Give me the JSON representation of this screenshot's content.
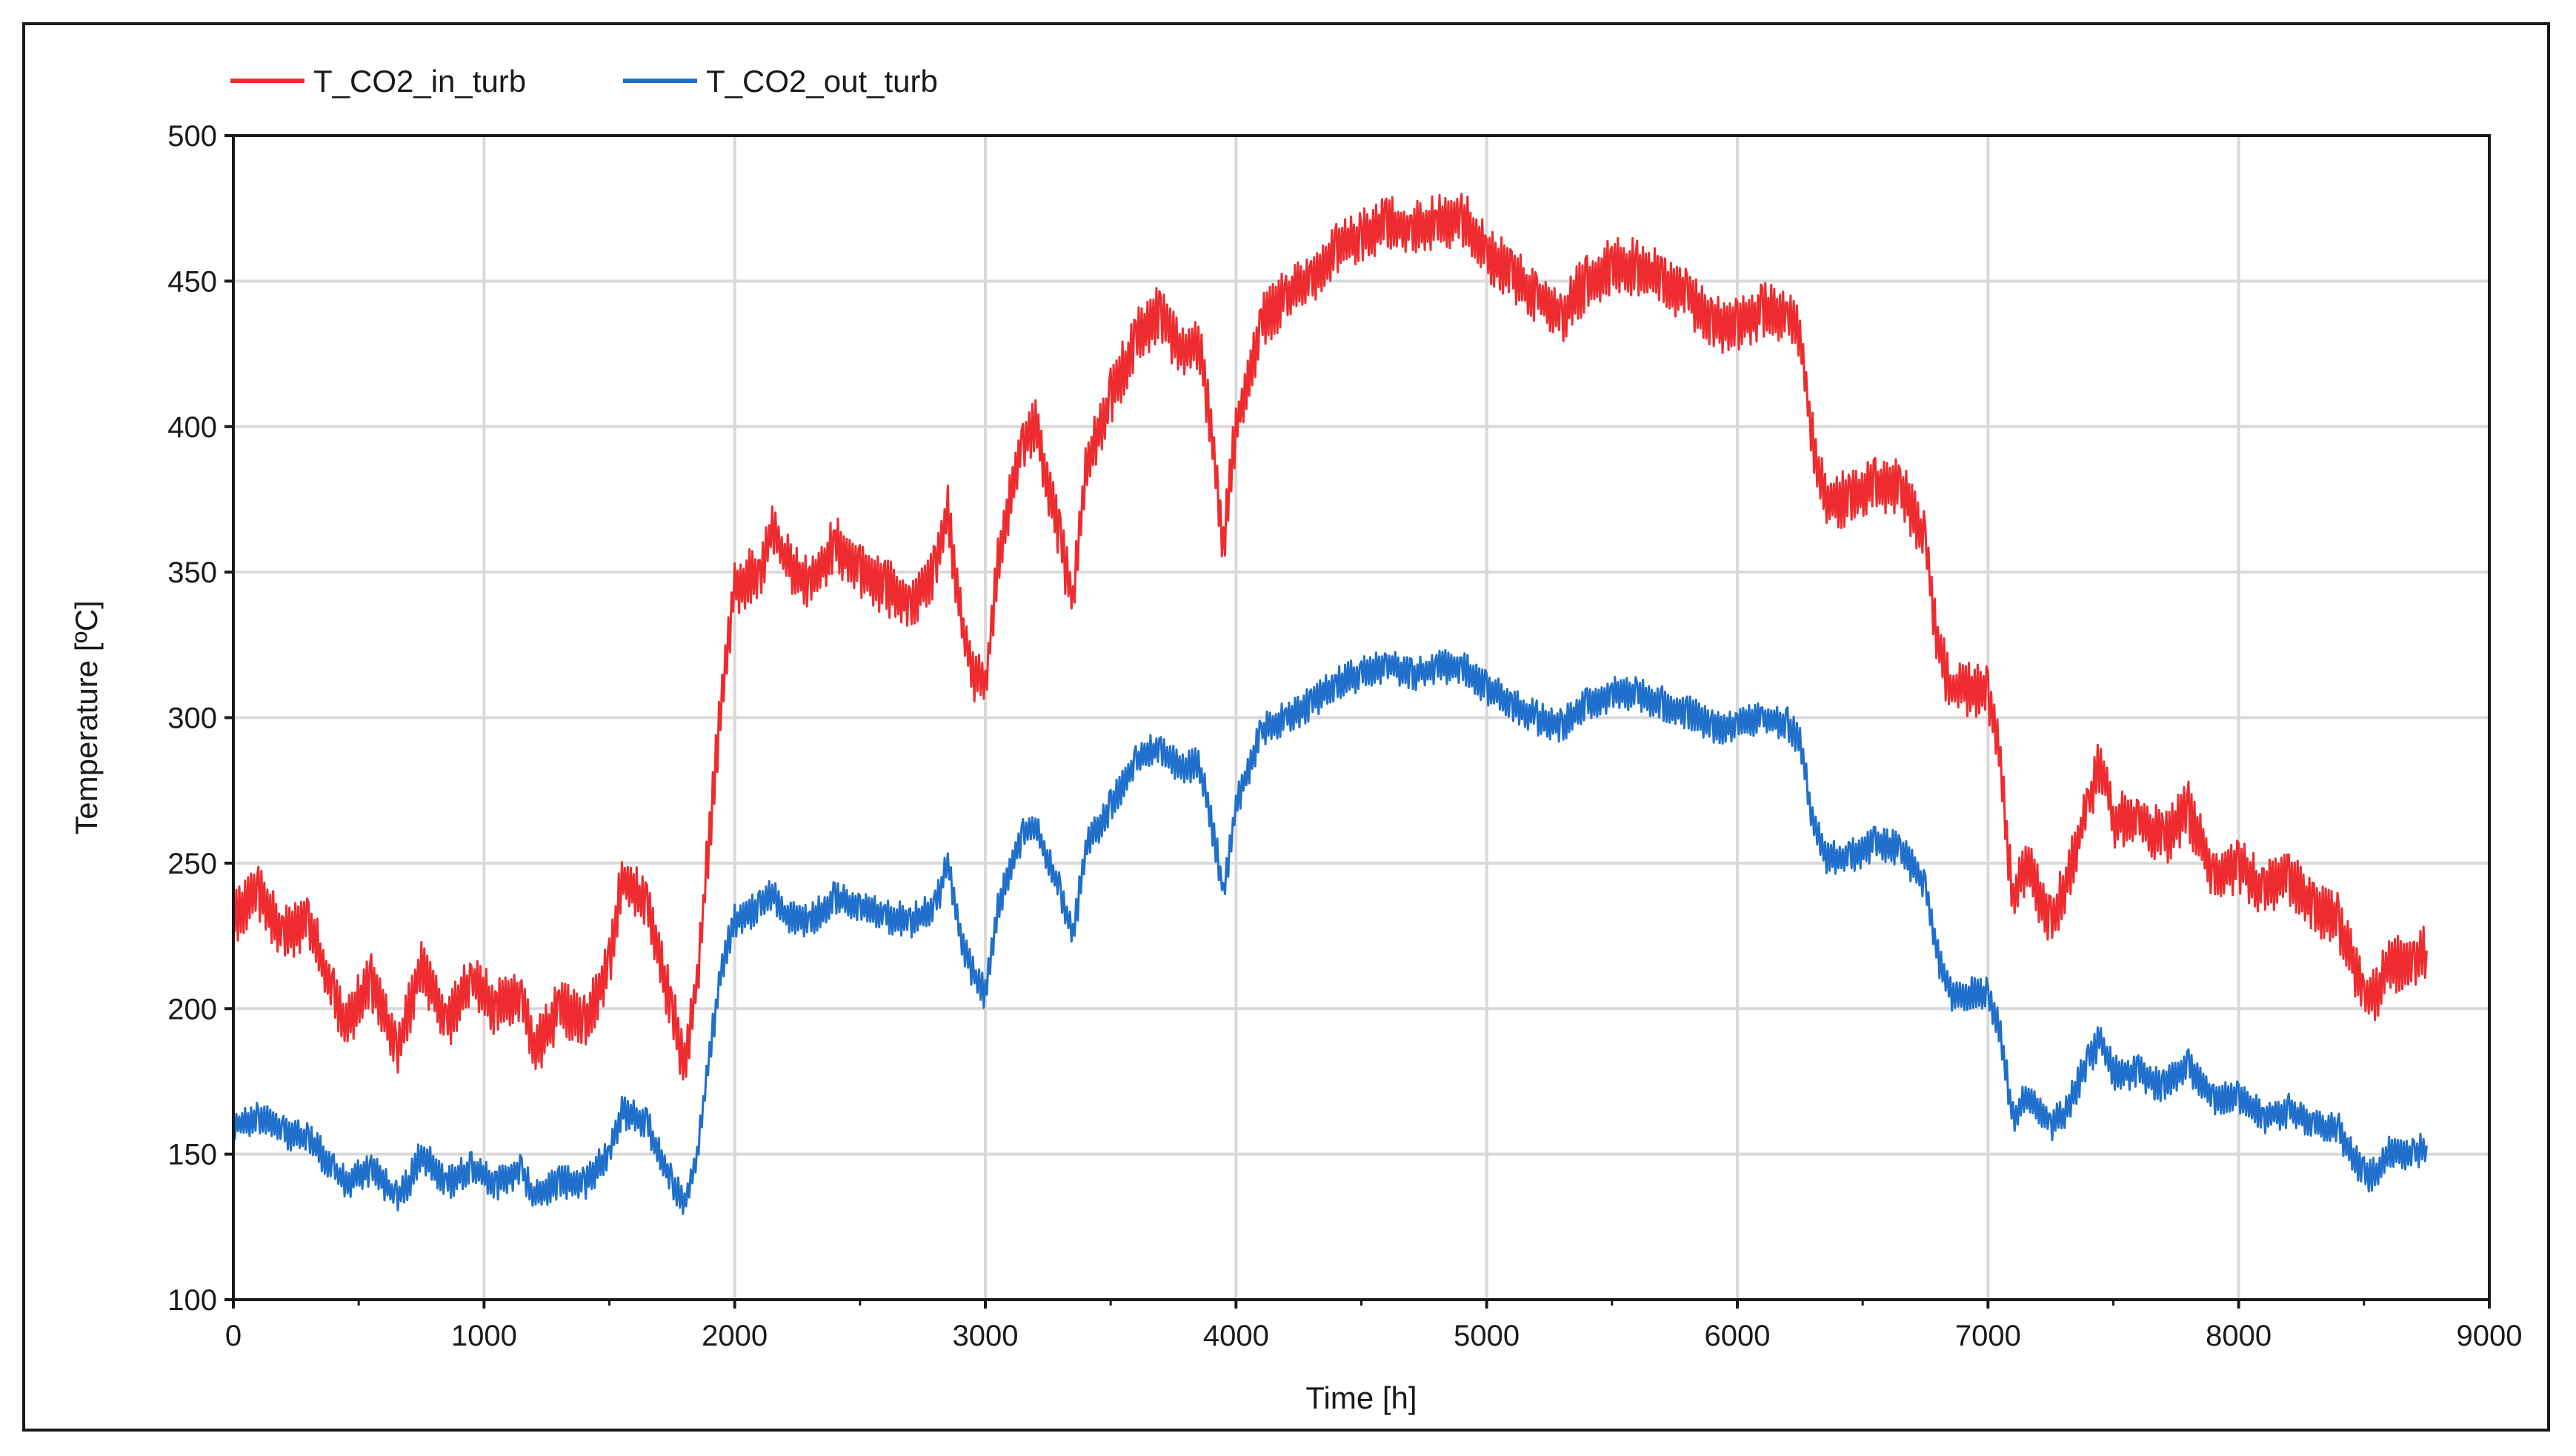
{
  "chart_data": {
    "type": "line",
    "title": "",
    "xlabel": "Time [h]",
    "ylabel": "Temperature [ºC]",
    "xlim": [
      0,
      9000
    ],
    "ylim": [
      100,
      500
    ],
    "x_ticks": [
      0,
      1000,
      2000,
      3000,
      4000,
      5000,
      6000,
      7000,
      8000,
      9000
    ],
    "y_ticks": [
      100,
      150,
      200,
      250,
      300,
      350,
      400,
      450,
      500
    ],
    "x_tick_labels": [
      "0",
      "1000",
      "2000",
      "3000",
      "4000",
      "5000",
      "6000",
      "7000",
      "8000",
      "9000"
    ],
    "y_tick_labels": [
      "100",
      "150",
      "200",
      "250",
      "300",
      "350",
      "400",
      "450",
      "500"
    ],
    "grid": true,
    "legend_position": "top-left",
    "series": [
      {
        "name": "T_CO2_in_turb",
        "color": "#ee2b2e",
        "x": [
          0,
          100,
          200,
          300,
          400,
          450,
          550,
          650,
          700,
          750,
          850,
          950,
          1050,
          1150,
          1200,
          1300,
          1400,
          1500,
          1550,
          1650,
          1750,
          1800,
          1850,
          1900,
          1950,
          2000,
          2100,
          2150,
          2200,
          2300,
          2400,
          2500,
          2600,
          2700,
          2800,
          2850,
          2900,
          2950,
          3000,
          3050,
          3150,
          3200,
          3300,
          3350,
          3400,
          3500,
          3600,
          3700,
          3750,
          3800,
          3850,
          3900,
          3950,
          4000,
          4100,
          4200,
          4300,
          4400,
          4500,
          4600,
          4700,
          4800,
          4900,
          5000,
          5100,
          5200,
          5300,
          5400,
          5500,
          5600,
          5700,
          5800,
          5900,
          6000,
          6100,
          6200,
          6250,
          6300,
          6350,
          6450,
          6550,
          6650,
          6750,
          6800,
          6850,
          6900,
          7000,
          7050,
          7100,
          7150,
          7250,
          7300,
          7400,
          7450,
          7500,
          7600,
          7700,
          7800,
          7900,
          8000,
          8100,
          8200,
          8300,
          8400,
          8500,
          8550,
          8600,
          8700,
          8750
        ],
        "values": [
          232,
          240,
          225,
          230,
          205,
          195,
          210,
          185,
          200,
          215,
          195,
          210,
          200,
          205,
          185,
          200,
          195,
          215,
          245,
          235,
          200,
          180,
          210,
          260,
          310,
          345,
          350,
          365,
          355,
          345,
          360,
          350,
          345,
          340,
          350,
          370,
          335,
          315,
          310,
          355,
          395,
          400,
          360,
          340,
          385,
          410,
          430,
          440,
          430,
          425,
          430,
          400,
          360,
          400,
          435,
          445,
          450,
          460,
          465,
          470,
          468,
          470,
          472,
          460,
          452,
          445,
          438,
          450,
          455,
          455,
          450,
          445,
          435,
          435,
          440,
          438,
          430,
          395,
          375,
          375,
          380,
          380,
          360,
          325,
          310,
          310,
          310,
          285,
          235,
          250,
          230,
          240,
          270,
          285,
          265,
          265,
          258,
          268,
          245,
          250,
          240,
          245,
          235,
          230,
          205,
          205,
          215,
          215,
          220
        ]
      },
      {
        "name": "T_CO2_out_turb",
        "color": "#1f6fcb",
        "x": [
          0,
          100,
          200,
          300,
          400,
          450,
          550,
          650,
          700,
          750,
          850,
          950,
          1050,
          1150,
          1200,
          1300,
          1400,
          1500,
          1550,
          1650,
          1750,
          1800,
          1850,
          1900,
          1950,
          2000,
          2100,
          2150,
          2200,
          2300,
          2400,
          2500,
          2600,
          2700,
          2800,
          2850,
          2900,
          2950,
          3000,
          3050,
          3150,
          3200,
          3300,
          3350,
          3400,
          3500,
          3600,
          3700,
          3750,
          3800,
          3850,
          3900,
          3950,
          4000,
          4100,
          4200,
          4300,
          4400,
          4500,
          4600,
          4700,
          4800,
          4900,
          5000,
          5100,
          5200,
          5300,
          5400,
          5500,
          5600,
          5700,
          5800,
          5900,
          6000,
          6100,
          6200,
          6250,
          6300,
          6350,
          6450,
          6550,
          6650,
          6750,
          6800,
          6850,
          6900,
          7000,
          7050,
          7100,
          7150,
          7250,
          7300,
          7400,
          7450,
          7500,
          7600,
          7700,
          7800,
          7900,
          8000,
          8100,
          8200,
          8300,
          8400,
          8500,
          8550,
          8600,
          8700,
          8750
        ],
        "values": [
          160,
          162,
          158,
          155,
          145,
          140,
          145,
          135,
          140,
          150,
          140,
          145,
          140,
          145,
          135,
          140,
          140,
          150,
          165,
          160,
          140,
          133,
          150,
          185,
          215,
          230,
          235,
          240,
          232,
          230,
          238,
          235,
          232,
          230,
          235,
          250,
          225,
          212,
          205,
          235,
          260,
          262,
          240,
          225,
          255,
          270,
          285,
          290,
          285,
          283,
          285,
          265,
          240,
          270,
          295,
          300,
          305,
          312,
          315,
          318,
          315,
          317,
          318,
          310,
          305,
          300,
          297,
          305,
          308,
          308,
          305,
          302,
          297,
          297,
          300,
          298,
          292,
          265,
          252,
          252,
          257,
          255,
          242,
          218,
          205,
          205,
          205,
          192,
          162,
          170,
          160,
          163,
          182,
          190,
          178,
          178,
          173,
          180,
          168,
          170,
          163,
          165,
          160,
          158,
          143,
          143,
          150,
          150,
          153
        ]
      }
    ]
  }
}
